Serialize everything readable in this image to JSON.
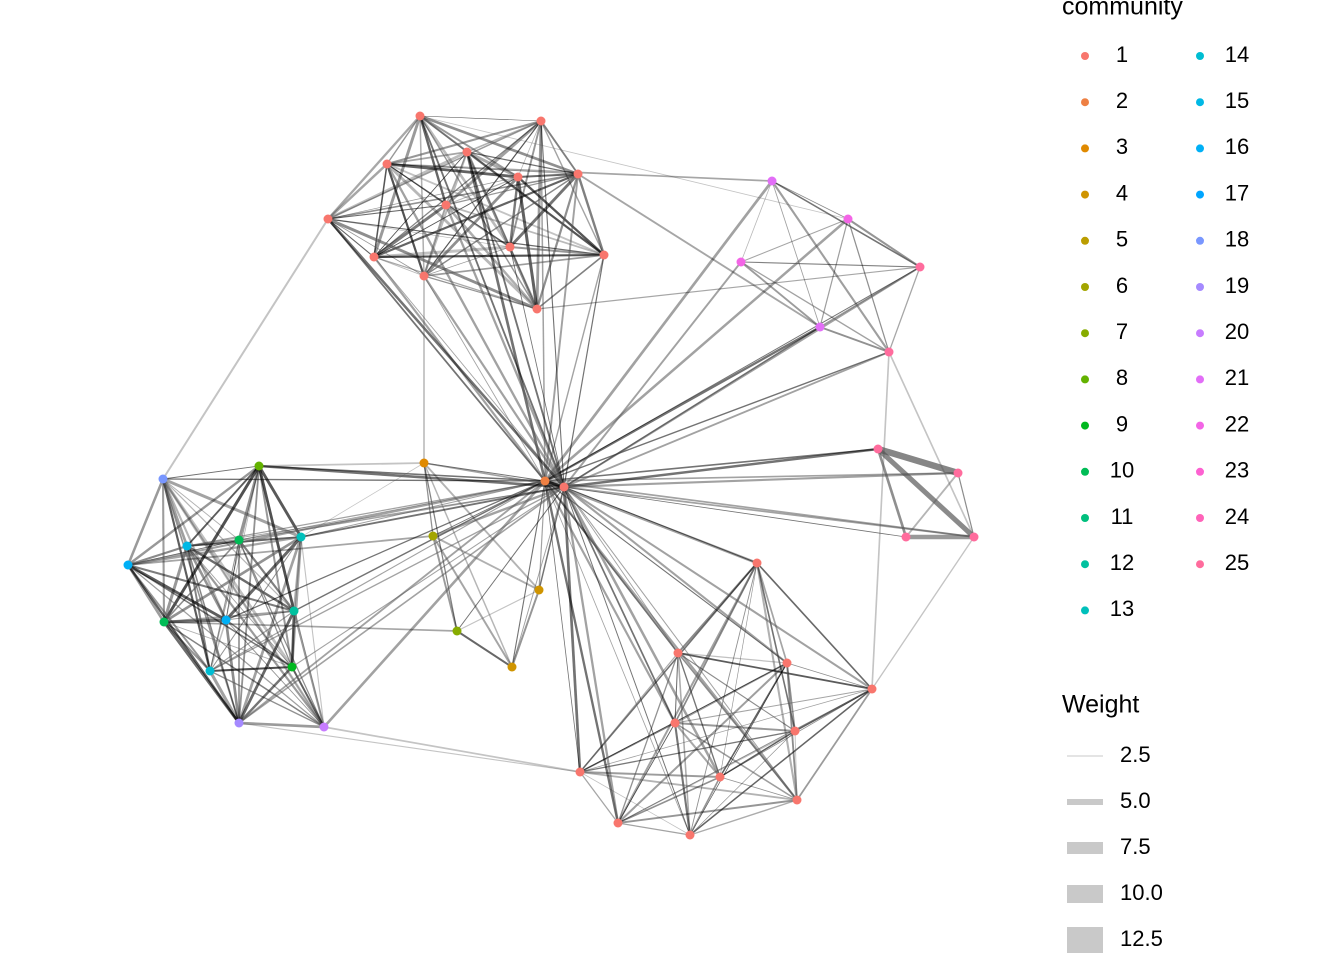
{
  "community_legend": {
    "title": "community",
    "labels": [
      "1",
      "2",
      "3",
      "4",
      "5",
      "6",
      "7",
      "8",
      "9",
      "10",
      "11",
      "12",
      "13",
      "14",
      "15",
      "16",
      "17",
      "18",
      "19",
      "20",
      "21",
      "22",
      "23",
      "24",
      "25"
    ],
    "colors": [
      "#F8766D",
      "#EE8043",
      "#E08A00",
      "#CF9400",
      "#BB9D00",
      "#A3A500",
      "#87AC00",
      "#63B200",
      "#00B81F",
      "#00BC56",
      "#00BF7D",
      "#00C19F",
      "#00C0BB",
      "#00BDD2",
      "#00B8E5",
      "#00B0F6",
      "#00A5FF",
      "#7997FF",
      "#A58AFF",
      "#C77CFF",
      "#E26EF7",
      "#F365E6",
      "#FD61D1",
      "#FF63B9",
      "#FF6C9D"
    ]
  },
  "weight_legend": {
    "title": "Weight",
    "labels": [
      "2.5",
      "5.0",
      "7.5",
      "10.0",
      "12.5"
    ]
  }
}
